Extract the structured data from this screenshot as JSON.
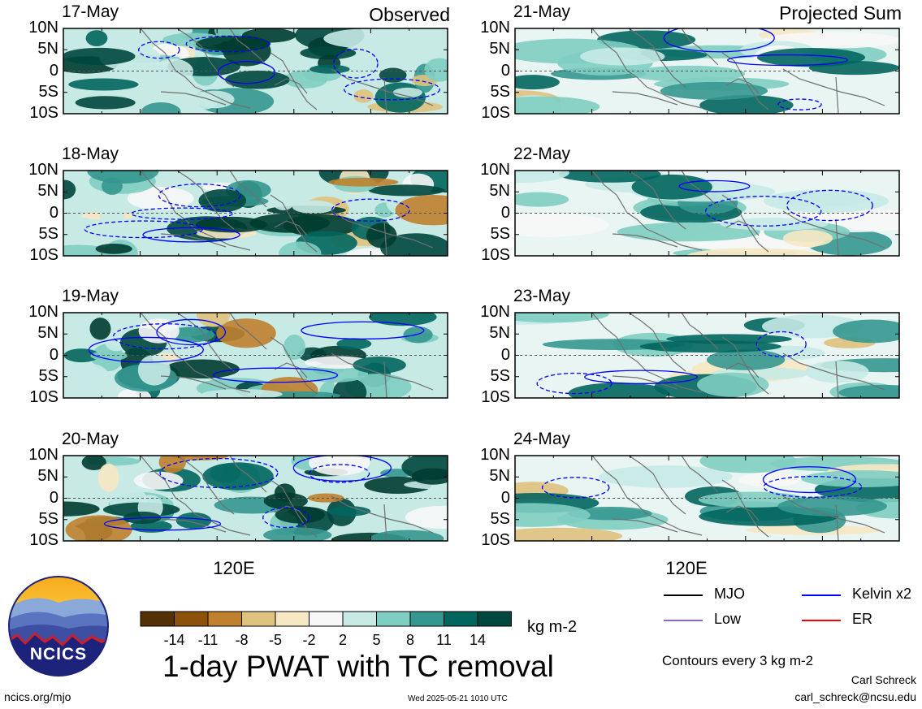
{
  "left_column_title": "Observed",
  "right_column_title": "Projected Sum",
  "panels": [
    {
      "date": "17-May"
    },
    {
      "date": "18-May"
    },
    {
      "date": "19-May"
    },
    {
      "date": "20-May"
    },
    {
      "date": "21-May"
    },
    {
      "date": "22-May"
    },
    {
      "date": "23-May"
    },
    {
      "date": "24-May"
    }
  ],
  "latitude_labels": [
    "10N",
    "5N",
    "0",
    "5S",
    "10S"
  ],
  "longitude_label": "120E",
  "colorbar": {
    "ticks": [
      "-14",
      "-11",
      "-8",
      "-5",
      "-2",
      "2",
      "5",
      "8",
      "11",
      "14"
    ],
    "colors": [
      "#543005",
      "#8c510a",
      "#bf812d",
      "#dfc27d",
      "#f6e8c3",
      "#f7f7f7",
      "#c7eae5",
      "#80cdc1",
      "#35978f",
      "#01665e",
      "#00473e",
      "#003c30"
    ],
    "units": "kg m-2"
  },
  "title": "1-day PWAT with TC removal",
  "legend": [
    {
      "label": "MJO",
      "color": "#000000"
    },
    {
      "label": "Kelvin x2",
      "color": "#0000ff"
    },
    {
      "label": "Low",
      "color": "#9060e0"
    },
    {
      "label": "ER",
      "color": "#ff0000"
    }
  ],
  "contour_note": "Contours every 3 kg m-2",
  "author": "Carl Schreck",
  "email": "carl_schreck@ncsu.edu",
  "website": "ncics.org/mjo",
  "timestamp": "Wed 2025-05-21 1010 UTC",
  "logo_text": "NCICS"
}
